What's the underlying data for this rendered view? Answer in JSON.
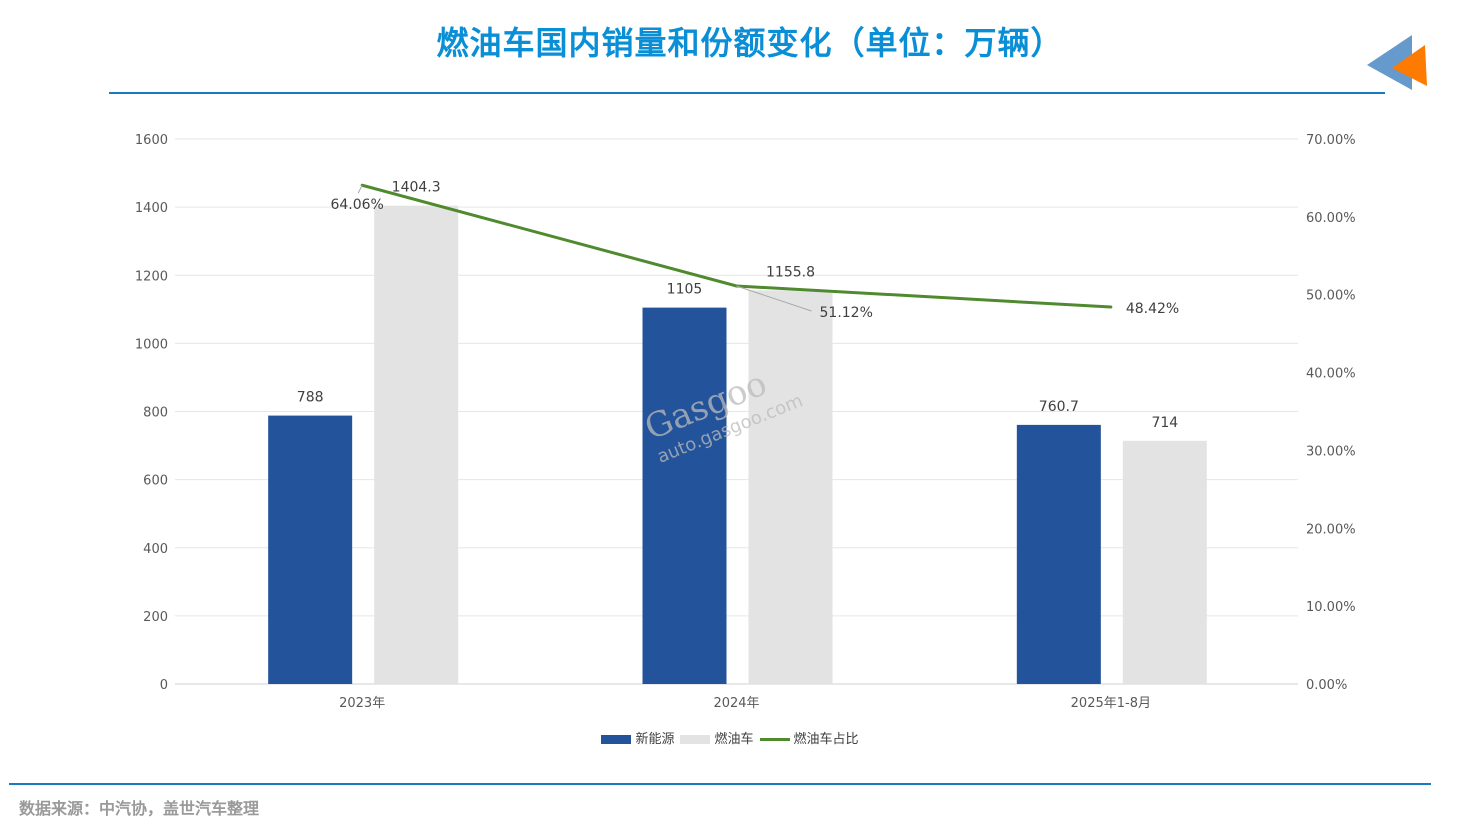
{
  "title": "燃油车国内销量和份额变化（单位：万辆）",
  "source": "数据来源：中汽协，盖世汽车整理",
  "watermark": {
    "brand": "Gasgoo",
    "cn": "盖世汽车",
    "url": "auto.gasgoo.com"
  },
  "colors": {
    "nev": "#23539b",
    "ice": "#e3e3e3",
    "share": "#4f8a2e",
    "accent": "#1a7ac0"
  },
  "chart_data": {
    "type": "bar+line",
    "title": "燃油车国内销量和份额变化（单位：万辆）",
    "categories": [
      "2023年",
      "2024年",
      "2025年1-8月"
    ],
    "series": [
      {
        "name": "新能源",
        "type": "bar",
        "axis": "left",
        "values": [
          788,
          1105,
          760.7
        ],
        "labels": [
          "788",
          "1105",
          "760.7"
        ]
      },
      {
        "name": "燃油车",
        "type": "bar",
        "axis": "left",
        "values": [
          1404.3,
          1155.8,
          714
        ],
        "labels": [
          "1404.3",
          "1155.8",
          "714"
        ]
      },
      {
        "name": "燃油车占比",
        "type": "line",
        "axis": "right",
        "values": [
          64.06,
          51.12,
          48.42
        ],
        "labels": [
          "64.06%",
          "51.12%",
          "48.42%"
        ]
      }
    ],
    "ylim": [
      0,
      1600
    ],
    "yticks": [
      "0",
      "200",
      "400",
      "600",
      "800",
      "1000",
      "1200",
      "1400",
      "1600"
    ],
    "y2lim": [
      0,
      70
    ],
    "y2ticks": [
      "0.00%",
      "10.00%",
      "20.00%",
      "30.00%",
      "40.00%",
      "50.00%",
      "60.00%",
      "70.00%"
    ],
    "grid": true,
    "legend": "bottom"
  }
}
